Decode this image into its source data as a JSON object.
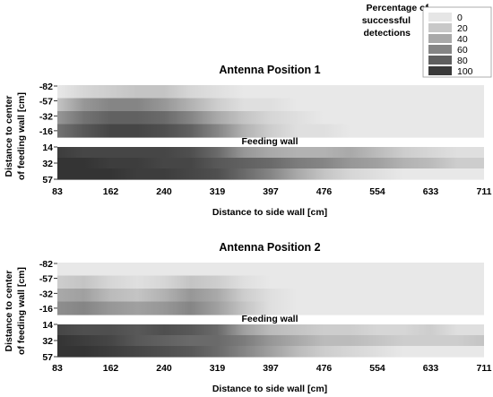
{
  "legend": {
    "title_lines": [
      "Percentage of",
      "successful",
      "detections"
    ],
    "items": [
      {
        "label": "0",
        "color": "#e6e6e6"
      },
      {
        "label": "20",
        "color": "#c8c8c8"
      },
      {
        "label": "40",
        "color": "#a9a9a9"
      },
      {
        "label": "60",
        "color": "#858585"
      },
      {
        "label": "80",
        "color": "#5f5f5f"
      },
      {
        "label": "100",
        "color": "#3a3a3a"
      }
    ]
  },
  "chart_data": [
    {
      "type": "heatmap",
      "title": "Antenna Position 1",
      "xlabel": "Distance to side wall [cm]",
      "ylabel_lines": [
        "Distance to center",
        "of feeding wall [cm]"
      ],
      "xticks": [
        "83",
        "162",
        "240",
        "319",
        "397",
        "476",
        "554",
        "633",
        "711"
      ],
      "separator_label": "Feeding wall",
      "upper": {
        "yticks": [
          "-82",
          "-57",
          "-32",
          "-16"
        ],
        "rows": [
          [
            0,
            10,
            15,
            20,
            20,
            10,
            5,
            0,
            0,
            0,
            0,
            0,
            0,
            0,
            0,
            0,
            0
          ],
          [
            20,
            45,
            55,
            55,
            45,
            30,
            15,
            5,
            5,
            0,
            0,
            0,
            0,
            0,
            0,
            0,
            0
          ],
          [
            45,
            65,
            75,
            75,
            70,
            55,
            35,
            20,
            10,
            5,
            0,
            0,
            0,
            0,
            0,
            0,
            0
          ],
          [
            65,
            80,
            90,
            90,
            85,
            75,
            55,
            30,
            15,
            5,
            5,
            0,
            0,
            0,
            0,
            0,
            0
          ]
        ]
      },
      "lower": {
        "yticks": [
          "14",
          "32",
          "57"
        ],
        "rows": [
          [
            95,
            90,
            90,
            90,
            90,
            85,
            70,
            45,
            35,
            30,
            30,
            35,
            25,
            15,
            10,
            5,
            5
          ],
          [
            100,
            100,
            95,
            95,
            90,
            90,
            80,
            75,
            70,
            60,
            55,
            45,
            40,
            30,
            25,
            15,
            15
          ],
          [
            100,
            100,
            100,
            95,
            95,
            90,
            85,
            70,
            55,
            35,
            20,
            10,
            5,
            0,
            0,
            0,
            0
          ]
        ]
      }
    },
    {
      "type": "heatmap",
      "title": "Antenna Position 2",
      "xlabel": "Distance to side wall [cm]",
      "ylabel_lines": [
        "Distance to center",
        "of feeding wall [cm]"
      ],
      "xticks": [
        "83",
        "162",
        "240",
        "319",
        "397",
        "476",
        "554",
        "633",
        "711"
      ],
      "separator_label": "Feeding wall",
      "upper": {
        "yticks": [
          "-82",
          "-57",
          "-32",
          "-16"
        ],
        "rows": [
          [
            0,
            0,
            0,
            0,
            0,
            0,
            0,
            0,
            0,
            0,
            0,
            0,
            0,
            0,
            0,
            0,
            0
          ],
          [
            15,
            20,
            10,
            5,
            10,
            20,
            15,
            5,
            0,
            0,
            0,
            0,
            0,
            0,
            0,
            0,
            0
          ],
          [
            35,
            40,
            25,
            20,
            30,
            45,
            35,
            15,
            5,
            0,
            0,
            0,
            0,
            0,
            0,
            0,
            0
          ],
          [
            50,
            55,
            45,
            40,
            45,
            55,
            40,
            20,
            5,
            0,
            0,
            0,
            0,
            0,
            0,
            0,
            0
          ]
        ]
      },
      "lower": {
        "yticks": [
          "14",
          "32",
          "57"
        ],
        "rows": [
          [
            90,
            85,
            85,
            80,
            85,
            80,
            70,
            40,
            25,
            20,
            15,
            15,
            10,
            10,
            15,
            5,
            5
          ],
          [
            100,
            95,
            90,
            80,
            75,
            70,
            70,
            60,
            45,
            35,
            25,
            25,
            20,
            15,
            15,
            15,
            20
          ],
          [
            100,
            100,
            95,
            90,
            85,
            80,
            70,
            55,
            40,
            25,
            15,
            10,
            5,
            0,
            0,
            0,
            0
          ]
        ]
      }
    }
  ]
}
